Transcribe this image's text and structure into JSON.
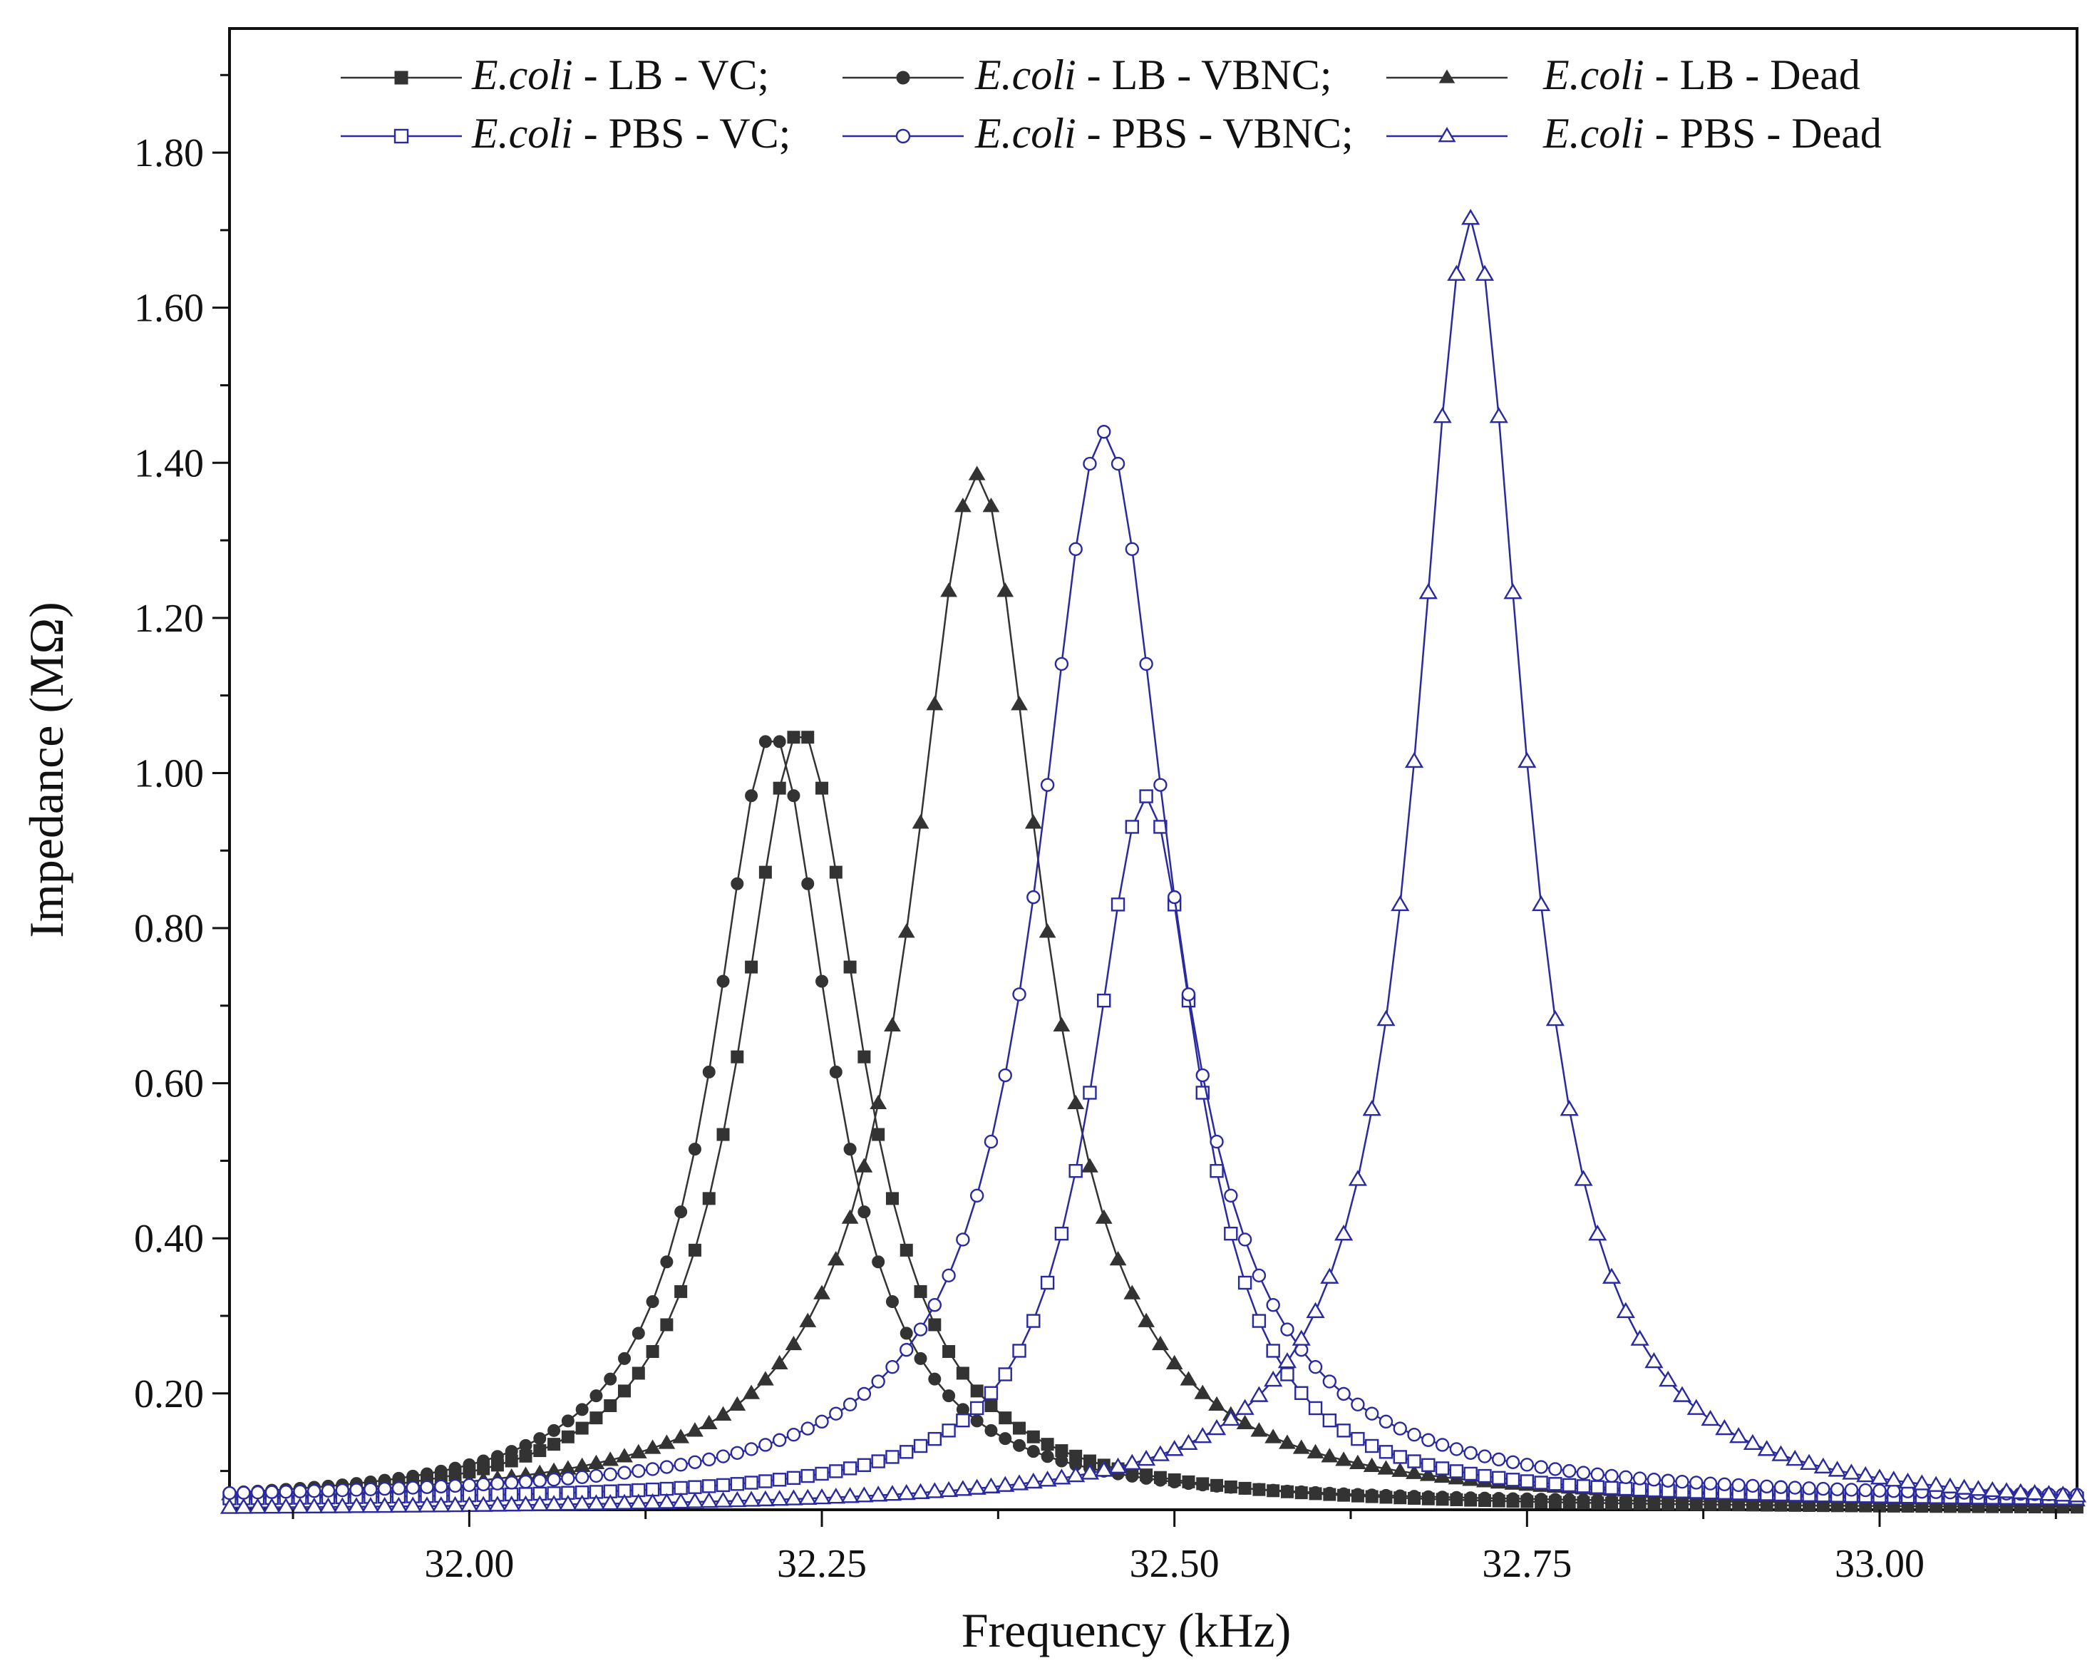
{
  "chart_data": {
    "type": "line",
    "xlabel": "Frequency (kHz)",
    "ylabel": "Impedance (MΩ)",
    "xlim": [
      31.83,
      33.14
    ],
    "ylim": [
      0.05,
      1.96
    ],
    "x_ticks": [
      32.0,
      32.25,
      32.5,
      32.75,
      33.0
    ],
    "x_tick_labels": [
      "32.00",
      "32.25",
      "32.50",
      "32.75",
      "33.00"
    ],
    "y_ticks": [
      0.2,
      0.4,
      0.6,
      0.8,
      1.0,
      1.2,
      1.4,
      1.6,
      1.8
    ],
    "y_tick_labels": [
      "0.20",
      "0.40",
      "0.60",
      "0.80",
      "1.00",
      "1.20",
      "1.40",
      "1.60",
      "1.80"
    ],
    "grid": false,
    "legend_position": "top",
    "sampling": {
      "x_start": 31.83,
      "x_end": 33.14,
      "step": 0.01
    },
    "series": [
      {
        "name": "E.coli - LB - VC;",
        "species": "E.coli",
        "rest": " - LB - VC;",
        "marker": "square",
        "filled": true,
        "color": "#333333",
        "peak_x": 32.235,
        "peak_y": 1.055,
        "half_width": 0.053,
        "baseline": 0.05
      },
      {
        "name": "E.coli - LB - VBNC;",
        "species": "E.coli",
        "rest": " - LB - VBNC;",
        "marker": "circle",
        "filled": true,
        "color": "#333333",
        "peak_x": 32.215,
        "peak_y": 1.05,
        "half_width": 0.051,
        "baseline": 0.055
      },
      {
        "name": "E.coli - LB - Dead",
        "species": "E.coli",
        "rest": " - LB - Dead",
        "marker": "triangle",
        "filled": true,
        "color": "#333333",
        "peak_x": 32.36,
        "peak_y": 1.385,
        "half_width": 0.056,
        "baseline": 0.055
      },
      {
        "name": "E.coli - PBS - VC;",
        "species": "E.coli",
        "rest": " - PBS - VC;",
        "marker": "square",
        "filled": false,
        "color": "#2a2aa0",
        "peak_x": 32.48,
        "peak_y": 0.97,
        "half_width": 0.047,
        "baseline": 0.06
      },
      {
        "name": "E.coli - PBS - VBNC;",
        "species": "E.coli",
        "rest": " - PBS - VBNC;",
        "marker": "circle",
        "filled": false,
        "color": "#2a2aa0",
        "peak_x": 32.45,
        "peak_y": 1.44,
        "half_width": 0.057,
        "baseline": 0.06
      },
      {
        "name": "E.coli - PBS - Dead",
        "species": "E.coli",
        "rest": " - PBS - Dead",
        "marker": "triangle",
        "filled": false,
        "color": "#2a2aa0",
        "peak_x": 32.71,
        "peak_y": 1.715,
        "half_width": 0.047,
        "baseline": 0.048
      }
    ]
  }
}
